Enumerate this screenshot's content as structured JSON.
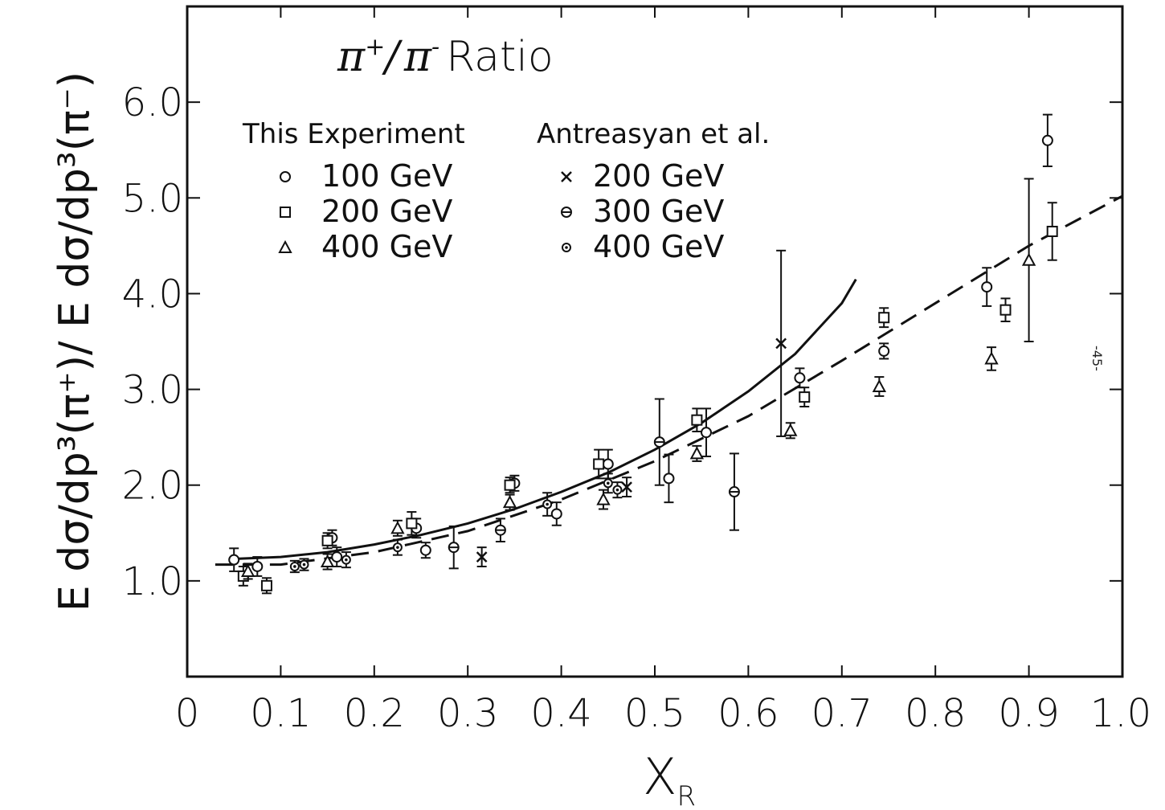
{
  "chart_data": {
    "type": "scatter",
    "title": "π⁺/ π⁻ Ratio",
    "title_parts": {
      "numerator": "π",
      "num_sup": "+",
      "slash": "/",
      "denominator": "π",
      "den_sup": "-",
      "word": "Ratio"
    },
    "xlabel": "X",
    "xlabel_sub": "R",
    "ylabel": "E dσ/dp³(π⁺)/ E dσ/dp³(π⁻)",
    "xlim": [
      0,
      1.0
    ],
    "ylim": [
      0,
      7.0
    ],
    "x_ticks": [
      "0",
      "0.1",
      "0.2",
      "0.3",
      "0.4",
      "0.5",
      "0.6",
      "0.7",
      "0.8",
      "0.9",
      "1.0"
    ],
    "y_ticks": [
      "1.0",
      "2.0",
      "3.0",
      "4.0",
      "5.0",
      "6.0"
    ],
    "grid": false,
    "legend": {
      "placement": "top-left",
      "groups": [
        {
          "heading": "This Experiment",
          "entries": [
            {
              "marker": "circle",
              "label": "100 GeV"
            },
            {
              "marker": "square",
              "label": "200 GeV"
            },
            {
              "marker": "triangle",
              "label": "400 GeV"
            }
          ]
        },
        {
          "heading": "Antreasyan et al.",
          "entries": [
            {
              "marker": "cross",
              "label": "200 GeV"
            },
            {
              "marker": "barred-circle",
              "label": "300 GeV"
            },
            {
              "marker": "dot-circle",
              "label": "400 GeV"
            }
          ]
        }
      ]
    },
    "series": [
      {
        "marker": "circle",
        "points": [
          {
            "x": 0.05,
            "y": 1.22,
            "err": 0.12
          },
          {
            "x": 0.075,
            "y": 1.15,
            "err": 0.1
          },
          {
            "x": 0.155,
            "y": 1.45,
            "err": 0.08
          },
          {
            "x": 0.16,
            "y": 1.25,
            "err": 0.1
          },
          {
            "x": 0.245,
            "y": 1.55,
            "err": 0.1
          },
          {
            "x": 0.255,
            "y": 1.32,
            "err": 0.08
          },
          {
            "x": 0.35,
            "y": 2.02,
            "err": 0.08
          },
          {
            "x": 0.395,
            "y": 1.7,
            "err": 0.12
          },
          {
            "x": 0.45,
            "y": 2.22,
            "err": 0.15
          },
          {
            "x": 0.515,
            "y": 2.07,
            "err": 0.25
          },
          {
            "x": 0.555,
            "y": 2.55,
            "err": 0.25
          },
          {
            "x": 0.655,
            "y": 3.12,
            "err": 0.1
          },
          {
            "x": 0.745,
            "y": 3.4,
            "err": 0.08
          },
          {
            "x": 0.855,
            "y": 4.07,
            "err": 0.2
          },
          {
            "x": 0.92,
            "y": 5.6,
            "err": 0.27
          }
        ]
      },
      {
        "marker": "square",
        "points": [
          {
            "x": 0.06,
            "y": 1.05,
            "err": 0.1
          },
          {
            "x": 0.085,
            "y": 0.95,
            "err": 0.08
          },
          {
            "x": 0.15,
            "y": 1.42,
            "err": 0.08
          },
          {
            "x": 0.24,
            "y": 1.6,
            "err": 0.12
          },
          {
            "x": 0.345,
            "y": 2.0,
            "err": 0.08
          },
          {
            "x": 0.44,
            "y": 2.22,
            "err": 0.15
          },
          {
            "x": 0.545,
            "y": 2.68,
            "err": 0.12
          },
          {
            "x": 0.66,
            "y": 2.92,
            "err": 0.1
          },
          {
            "x": 0.745,
            "y": 3.75,
            "err": 0.1
          },
          {
            "x": 0.875,
            "y": 3.83,
            "err": 0.12
          },
          {
            "x": 0.925,
            "y": 4.65,
            "err": 0.3
          }
        ]
      },
      {
        "marker": "triangle",
        "points": [
          {
            "x": 0.065,
            "y": 1.1,
            "err": 0.08
          },
          {
            "x": 0.15,
            "y": 1.2,
            "err": 0.08
          },
          {
            "x": 0.225,
            "y": 1.55,
            "err": 0.08
          },
          {
            "x": 0.345,
            "y": 1.82,
            "err": 0.08
          },
          {
            "x": 0.445,
            "y": 1.85,
            "err": 0.1
          },
          {
            "x": 0.545,
            "y": 2.33,
            "err": 0.08
          },
          {
            "x": 0.645,
            "y": 2.57,
            "err": 0.08
          },
          {
            "x": 0.74,
            "y": 3.03,
            "err": 0.1
          },
          {
            "x": 0.86,
            "y": 3.32,
            "err": 0.12
          },
          {
            "x": 0.9,
            "y": 4.35,
            "err": 0.85
          }
        ]
      },
      {
        "marker": "cross",
        "points": [
          {
            "x": 0.315,
            "y": 1.25,
            "err": 0.1
          },
          {
            "x": 0.47,
            "y": 1.98,
            "err": 0.1
          },
          {
            "x": 0.635,
            "y": 3.48,
            "err": 0.97
          }
        ]
      },
      {
        "marker": "barred-circle",
        "points": [
          {
            "x": 0.285,
            "y": 1.35,
            "err": 0.22
          },
          {
            "x": 0.335,
            "y": 1.53,
            "err": 0.12
          },
          {
            "x": 0.505,
            "y": 2.45,
            "err": 0.45
          },
          {
            "x": 0.585,
            "y": 1.93,
            "err": 0.4
          }
        ]
      },
      {
        "marker": "dot-circle",
        "points": [
          {
            "x": 0.115,
            "y": 1.15,
            "err": 0.06
          },
          {
            "x": 0.125,
            "y": 1.17,
            "err": 0.06
          },
          {
            "x": 0.17,
            "y": 1.22,
            "err": 0.08
          },
          {
            "x": 0.225,
            "y": 1.35,
            "err": 0.08
          },
          {
            "x": 0.385,
            "y": 1.8,
            "err": 0.12
          },
          {
            "x": 0.45,
            "y": 2.02,
            "err": 0.1
          },
          {
            "x": 0.46,
            "y": 1.95,
            "err": 0.08
          }
        ]
      }
    ],
    "curves": [
      {
        "style": "solid",
        "points": [
          [
            0.05,
            1.23
          ],
          [
            0.1,
            1.25
          ],
          [
            0.15,
            1.3
          ],
          [
            0.2,
            1.38
          ],
          [
            0.25,
            1.48
          ],
          [
            0.3,
            1.6
          ],
          [
            0.35,
            1.75
          ],
          [
            0.4,
            1.93
          ],
          [
            0.45,
            2.13
          ],
          [
            0.5,
            2.37
          ],
          [
            0.55,
            2.65
          ],
          [
            0.6,
            2.98
          ],
          [
            0.65,
            3.37
          ],
          [
            0.7,
            3.9
          ],
          [
            0.715,
            4.15
          ]
        ]
      },
      {
        "style": "dashed",
        "points": [
          [
            0.03,
            1.17
          ],
          [
            0.1,
            1.17
          ],
          [
            0.2,
            1.3
          ],
          [
            0.3,
            1.52
          ],
          [
            0.4,
            1.85
          ],
          [
            0.5,
            2.25
          ],
          [
            0.6,
            2.72
          ],
          [
            0.7,
            3.3
          ],
          [
            0.8,
            3.9
          ],
          [
            0.9,
            4.5
          ],
          [
            1.0,
            5.02
          ]
        ]
      }
    ],
    "annotation": "-45-"
  }
}
